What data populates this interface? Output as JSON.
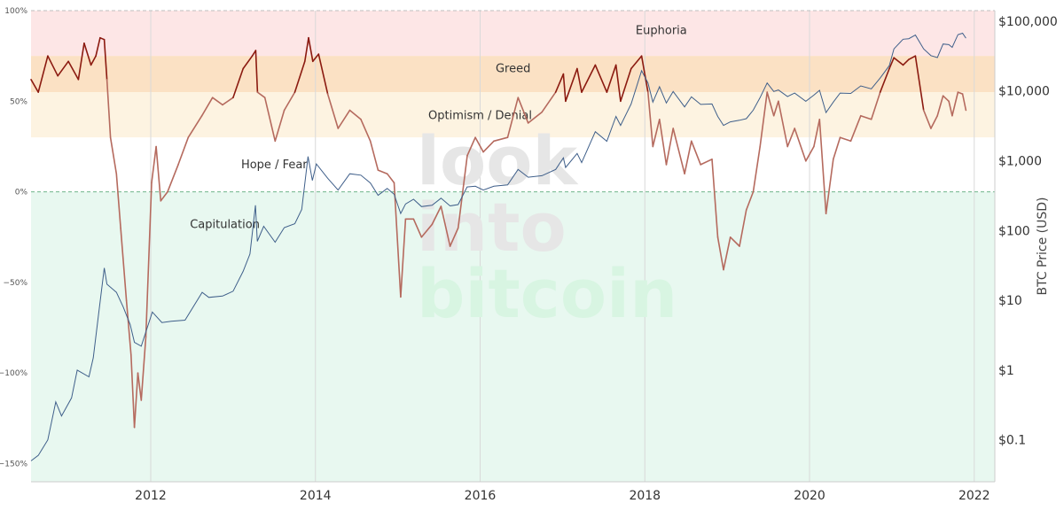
{
  "colors": {
    "euphoria": "#fde6e6",
    "greed": "#fbe1c4",
    "optimism": "#fdf3e1",
    "capitulation": "#e8f8f0",
    "nupl_line": "#b56a5e",
    "nupl_high": "#8b1a10",
    "price_line": "#3f5f8a",
    "grid": "#d9d9d9",
    "zero_line": "#6fb58a"
  },
  "watermark": {
    "lines": [
      "look",
      "into",
      "bitcoin"
    ],
    "colors": [
      "#e6e6e6",
      "#e6e6e6",
      "#d8f5e2"
    ]
  },
  "chart_data": {
    "type": "line",
    "x_range": [
      "2010-07-18",
      "2022-04-01"
    ],
    "x_ticks": [
      "2012",
      "2014",
      "2016",
      "2018",
      "2020",
      "2022"
    ],
    "y_left": {
      "ylim": [
        -160,
        100
      ],
      "ticks": [
        {
          "value": 100,
          "label": "100%"
        },
        {
          "value": 50,
          "label": "50%"
        },
        {
          "value": 0,
          "label": "0%"
        },
        {
          "value": -50,
          "label": "−50%"
        },
        {
          "value": -100,
          "label": "−100%"
        },
        {
          "value": -150,
          "label": "−150%"
        }
      ]
    },
    "y_right": {
      "scale": "log",
      "label": "BTC Price (USD)",
      "ticks": [
        {
          "value": 100000,
          "label": "$100,000"
        },
        {
          "value": 10000,
          "label": "$10,000"
        },
        {
          "value": 1000,
          "label": "$1,000"
        },
        {
          "value": 100,
          "label": "$100"
        },
        {
          "value": 10,
          "label": "$10"
        },
        {
          "value": 1,
          "label": "$1"
        },
        {
          "value": 0.1,
          "label": "$0.1"
        }
      ]
    },
    "zones": [
      {
        "name": "Euphoria",
        "from": 75,
        "to": 100
      },
      {
        "name": "Greed",
        "from": 55,
        "to": 75
      },
      {
        "name": "Optimism / Denial",
        "from": 30,
        "to": 55
      },
      {
        "name": "Hope / Fear",
        "from": 0,
        "to": 30
      },
      {
        "name": "Capitulation",
        "from": -160,
        "to": 0
      }
    ],
    "zone_labels": [
      {
        "text": "Euphoria",
        "date": "2018.2",
        "value": 89
      },
      {
        "text": "Greed",
        "date": "2016.4",
        "value": 68
      },
      {
        "text": "Optimism / Denial",
        "date": "2016.0",
        "value": 42
      },
      {
        "text": "Hope / Fear",
        "date": "2013.5",
        "value": 15
      },
      {
        "text": "Capitulation",
        "date": "2012.9",
        "value": -18
      }
    ],
    "series": [
      {
        "role": "nupl",
        "axis": "left",
        "points": [
          [
            "2010-07-18",
            62
          ],
          [
            "2010-08-20",
            55
          ],
          [
            "2010-10-01",
            75
          ],
          [
            "2010-11-15",
            64
          ],
          [
            "2011-01-01",
            72
          ],
          [
            "2011-02-15",
            62
          ],
          [
            "2011-03-10",
            82
          ],
          [
            "2011-04-10",
            70
          ],
          [
            "2011-05-01",
            75
          ],
          [
            "2011-05-20",
            85
          ],
          [
            "2011-06-08",
            84
          ],
          [
            "2011-06-20",
            62
          ],
          [
            "2011-07-05",
            30
          ],
          [
            "2011-08-01",
            10
          ],
          [
            "2011-08-20",
            -20
          ],
          [
            "2011-09-15",
            -60
          ],
          [
            "2011-10-05",
            -90
          ],
          [
            "2011-10-20",
            -130
          ],
          [
            "2011-11-05",
            -100
          ],
          [
            "2011-11-20",
            -115
          ],
          [
            "2011-12-10",
            -80
          ],
          [
            "2012-01-05",
            5
          ],
          [
            "2012-01-25",
            25
          ],
          [
            "2012-02-15",
            -5
          ],
          [
            "2012-03-15",
            0
          ],
          [
            "2012-05-01",
            15
          ],
          [
            "2012-06-15",
            30
          ],
          [
            "2012-08-15",
            42
          ],
          [
            "2012-10-01",
            52
          ],
          [
            "2012-11-15",
            48
          ],
          [
            "2013-01-01",
            52
          ],
          [
            "2013-02-15",
            68
          ],
          [
            "2013-03-25",
            75
          ],
          [
            "2013-04-10",
            78
          ],
          [
            "2013-04-18",
            55
          ],
          [
            "2013-05-20",
            52
          ],
          [
            "2013-07-05",
            28
          ],
          [
            "2013-08-15",
            45
          ],
          [
            "2013-10-01",
            55
          ],
          [
            "2013-11-15",
            72
          ],
          [
            "2013-12-01",
            85
          ],
          [
            "2013-12-20",
            72
          ],
          [
            "2014-01-15",
            76
          ],
          [
            "2014-02-25",
            54
          ],
          [
            "2014-04-10",
            35
          ],
          [
            "2014-06-01",
            45
          ],
          [
            "2014-07-20",
            40
          ],
          [
            "2014-09-01",
            28
          ],
          [
            "2014-10-05",
            12
          ],
          [
            "2014-11-15",
            10
          ],
          [
            "2014-12-15",
            5
          ],
          [
            "2015-01-14",
            -58
          ],
          [
            "2015-02-05",
            -15
          ],
          [
            "2015-03-10",
            -15
          ],
          [
            "2015-04-15",
            -25
          ],
          [
            "2015-06-01",
            -18
          ],
          [
            "2015-07-10",
            -8
          ],
          [
            "2015-08-20",
            -30
          ],
          [
            "2015-09-25",
            -20
          ],
          [
            "2015-11-05",
            20
          ],
          [
            "2015-12-10",
            30
          ],
          [
            "2016-01-15",
            22
          ],
          [
            "2016-03-01",
            28
          ],
          [
            "2016-05-01",
            30
          ],
          [
            "2016-06-17",
            52
          ],
          [
            "2016-08-01",
            38
          ],
          [
            "2016-10-01",
            44
          ],
          [
            "2016-12-01",
            55
          ],
          [
            "2017-01-05",
            65
          ],
          [
            "2017-01-15",
            50
          ],
          [
            "2017-03-05",
            68
          ],
          [
            "2017-03-25",
            55
          ],
          [
            "2017-05-25",
            70
          ],
          [
            "2017-07-15",
            55
          ],
          [
            "2017-08-25",
            70
          ],
          [
            "2017-09-15",
            50
          ],
          [
            "2017-11-01",
            68
          ],
          [
            "2017-12-17",
            75
          ],
          [
            "2018-01-15",
            55
          ],
          [
            "2018-02-06",
            25
          ],
          [
            "2018-03-05",
            40
          ],
          [
            "2018-04-05",
            15
          ],
          [
            "2018-05-05",
            35
          ],
          [
            "2018-06-25",
            10
          ],
          [
            "2018-07-25",
            28
          ],
          [
            "2018-09-05",
            15
          ],
          [
            "2018-10-25",
            18
          ],
          [
            "2018-11-20",
            -25
          ],
          [
            "2018-12-15",
            -43
          ],
          [
            "2019-01-15",
            -25
          ],
          [
            "2019-02-25",
            -30
          ],
          [
            "2019-03-25",
            -10
          ],
          [
            "2019-04-25",
            0
          ],
          [
            "2019-05-25",
            25
          ],
          [
            "2019-06-26",
            55
          ],
          [
            "2019-07-25",
            42
          ],
          [
            "2019-08-15",
            50
          ],
          [
            "2019-09-25",
            25
          ],
          [
            "2019-10-26",
            35
          ],
          [
            "2019-12-15",
            17
          ],
          [
            "2020-01-20",
            25
          ],
          [
            "2020-02-15",
            40
          ],
          [
            "2020-03-13",
            -12
          ],
          [
            "2020-04-15",
            18
          ],
          [
            "2020-05-15",
            30
          ],
          [
            "2020-07-01",
            28
          ],
          [
            "2020-08-15",
            42
          ],
          [
            "2020-10-01",
            40
          ],
          [
            "2020-11-10",
            55
          ],
          [
            "2020-12-20",
            68
          ],
          [
            "2021-01-10",
            74
          ],
          [
            "2021-02-20",
            70
          ],
          [
            "2021-03-15",
            73
          ],
          [
            "2021-04-14",
            75
          ],
          [
            "2021-05-20",
            45
          ],
          [
            "2021-06-22",
            35
          ],
          [
            "2021-07-20",
            42
          ],
          [
            "2021-08-15",
            53
          ],
          [
            "2021-09-10",
            50
          ],
          [
            "2021-09-25",
            42
          ],
          [
            "2021-10-20",
            55
          ],
          [
            "2021-11-10",
            54
          ],
          [
            "2021-11-25",
            45
          ]
        ]
      },
      {
        "role": "price",
        "axis": "right",
        "points": [
          [
            "2010-07-18",
            0.05
          ],
          [
            "2010-08-20",
            0.06
          ],
          [
            "2010-10-01",
            0.1
          ],
          [
            "2010-11-06",
            0.35
          ],
          [
            "2010-12-01",
            0.22
          ],
          [
            "2011-01-15",
            0.4
          ],
          [
            "2011-02-10",
            1.0
          ],
          [
            "2011-04-01",
            0.8
          ],
          [
            "2011-04-20",
            1.5
          ],
          [
            "2011-05-15",
            7
          ],
          [
            "2011-06-08",
            29
          ],
          [
            "2011-06-20",
            17
          ],
          [
            "2011-08-01",
            13
          ],
          [
            "2011-09-01",
            8
          ],
          [
            "2011-10-01",
            4.5
          ],
          [
            "2011-10-20",
            2.5
          ],
          [
            "2011-11-20",
            2.2
          ],
          [
            "2012-01-08",
            6.8
          ],
          [
            "2012-02-20",
            4.8
          ],
          [
            "2012-04-01",
            5
          ],
          [
            "2012-06-01",
            5.2
          ],
          [
            "2012-08-16",
            13
          ],
          [
            "2012-09-15",
            11
          ],
          [
            "2012-11-15",
            11.5
          ],
          [
            "2013-01-01",
            13.5
          ],
          [
            "2013-02-15",
            26
          ],
          [
            "2013-03-15",
            46
          ],
          [
            "2013-04-09",
            230
          ],
          [
            "2013-04-17",
            70
          ],
          [
            "2013-05-15",
            115
          ],
          [
            "2013-07-05",
            68
          ],
          [
            "2013-08-15",
            110
          ],
          [
            "2013-10-01",
            125
          ],
          [
            "2013-11-01",
            200
          ],
          [
            "2013-11-29",
            1150
          ],
          [
            "2013-12-18",
            520
          ],
          [
            "2014-01-05",
            900
          ],
          [
            "2014-02-25",
            560
          ],
          [
            "2014-04-10",
            380
          ],
          [
            "2014-06-01",
            650
          ],
          [
            "2014-07-20",
            620
          ],
          [
            "2014-09-01",
            480
          ],
          [
            "2014-10-05",
            320
          ],
          [
            "2014-11-15",
            400
          ],
          [
            "2014-12-15",
            330
          ],
          [
            "2015-01-14",
            175
          ],
          [
            "2015-02-05",
            240
          ],
          [
            "2015-03-10",
            280
          ],
          [
            "2015-04-15",
            220
          ],
          [
            "2015-06-01",
            230
          ],
          [
            "2015-07-10",
            290
          ],
          [
            "2015-08-20",
            225
          ],
          [
            "2015-09-25",
            235
          ],
          [
            "2015-11-04",
            420
          ],
          [
            "2015-12-10",
            430
          ],
          [
            "2016-01-15",
            380
          ],
          [
            "2016-03-01",
            430
          ],
          [
            "2016-05-01",
            450
          ],
          [
            "2016-06-17",
            750
          ],
          [
            "2016-08-01",
            580
          ],
          [
            "2016-10-01",
            610
          ],
          [
            "2016-12-01",
            750
          ],
          [
            "2017-01-05",
            1100
          ],
          [
            "2017-01-15",
            800
          ],
          [
            "2017-03-05",
            1270
          ],
          [
            "2017-03-25",
            940
          ],
          [
            "2017-05-25",
            2600
          ],
          [
            "2017-07-15",
            1900
          ],
          [
            "2017-08-25",
            4300
          ],
          [
            "2017-09-15",
            3200
          ],
          [
            "2017-11-01",
            6500
          ],
          [
            "2017-12-17",
            19500
          ],
          [
            "2018-01-15",
            13000
          ],
          [
            "2018-02-06",
            6900
          ],
          [
            "2018-03-05",
            11500
          ],
          [
            "2018-04-05",
            6700
          ],
          [
            "2018-05-05",
            9800
          ],
          [
            "2018-06-25",
            5900
          ],
          [
            "2018-07-25",
            8200
          ],
          [
            "2018-09-05",
            6400
          ],
          [
            "2018-10-25",
            6500
          ],
          [
            "2018-11-20",
            4300
          ],
          [
            "2018-12-15",
            3200
          ],
          [
            "2019-01-15",
            3600
          ],
          [
            "2019-02-25",
            3800
          ],
          [
            "2019-03-25",
            4000
          ],
          [
            "2019-04-25",
            5300
          ],
          [
            "2019-05-25",
            8000
          ],
          [
            "2019-06-26",
            13000
          ],
          [
            "2019-07-25",
            9800
          ],
          [
            "2019-08-15",
            10300
          ],
          [
            "2019-09-25",
            8300
          ],
          [
            "2019-10-26",
            9300
          ],
          [
            "2019-12-15",
            7100
          ],
          [
            "2020-01-20",
            8700
          ],
          [
            "2020-02-15",
            10200
          ],
          [
            "2020-03-13",
            4900
          ],
          [
            "2020-04-15",
            6900
          ],
          [
            "2020-05-15",
            9300
          ],
          [
            "2020-07-01",
            9200
          ],
          [
            "2020-08-15",
            11800
          ],
          [
            "2020-10-01",
            10700
          ],
          [
            "2020-11-10",
            15300
          ],
          [
            "2020-12-20",
            23000
          ],
          [
            "2021-01-10",
            40000
          ],
          [
            "2021-02-20",
            55000
          ],
          [
            "2021-03-15",
            56000
          ],
          [
            "2021-04-14",
            63000
          ],
          [
            "2021-05-20",
            40000
          ],
          [
            "2021-06-22",
            32000
          ],
          [
            "2021-07-20",
            30000
          ],
          [
            "2021-08-15",
            47000
          ],
          [
            "2021-09-10",
            46000
          ],
          [
            "2021-09-25",
            42000
          ],
          [
            "2021-10-20",
            64000
          ],
          [
            "2021-11-10",
            67000
          ],
          [
            "2021-11-25",
            57000
          ]
        ]
      }
    ]
  }
}
